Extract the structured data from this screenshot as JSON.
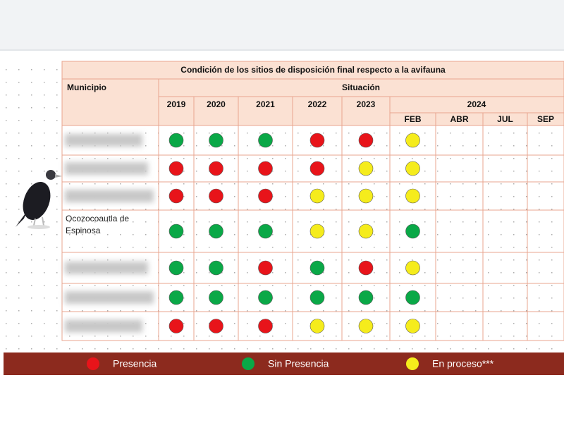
{
  "title": "Condición de los sitios de disposición final respecto a la avifauna",
  "header": {
    "municipio": "Municipio",
    "situacion": "Situación",
    "years": [
      2019,
      2020,
      2021,
      2022,
      2023
    ],
    "current_year": 2024,
    "months": [
      "FEB",
      "ABR",
      "JUL",
      "SEP"
    ]
  },
  "rows": [
    {
      "municipio": null,
      "status": [
        1,
        1,
        1,
        0,
        0,
        2
      ]
    },
    {
      "municipio": null,
      "status": [
        0,
        0,
        0,
        0,
        2,
        2
      ]
    },
    {
      "municipio": null,
      "status": [
        0,
        0,
        0,
        2,
        2,
        2
      ]
    },
    {
      "municipio": [
        "Ocozocoautla de",
        "Espinosa"
      ],
      "status": [
        1,
        1,
        1,
        2,
        2,
        1
      ]
    },
    {
      "municipio": null,
      "status": [
        1,
        1,
        0,
        1,
        0,
        2
      ]
    },
    {
      "municipio": null,
      "status": [
        1,
        1,
        1,
        1,
        1,
        1
      ]
    },
    {
      "municipio": null,
      "status": [
        0,
        0,
        0,
        2,
        2,
        2
      ]
    }
  ],
  "legend": [
    {
      "label": "Presencia",
      "color": "#e8141a"
    },
    {
      "label": "Sin Presencia",
      "color": "#0aa847"
    },
    {
      "label": "En proceso***",
      "color": "#f5ec1c"
    }
  ]
}
